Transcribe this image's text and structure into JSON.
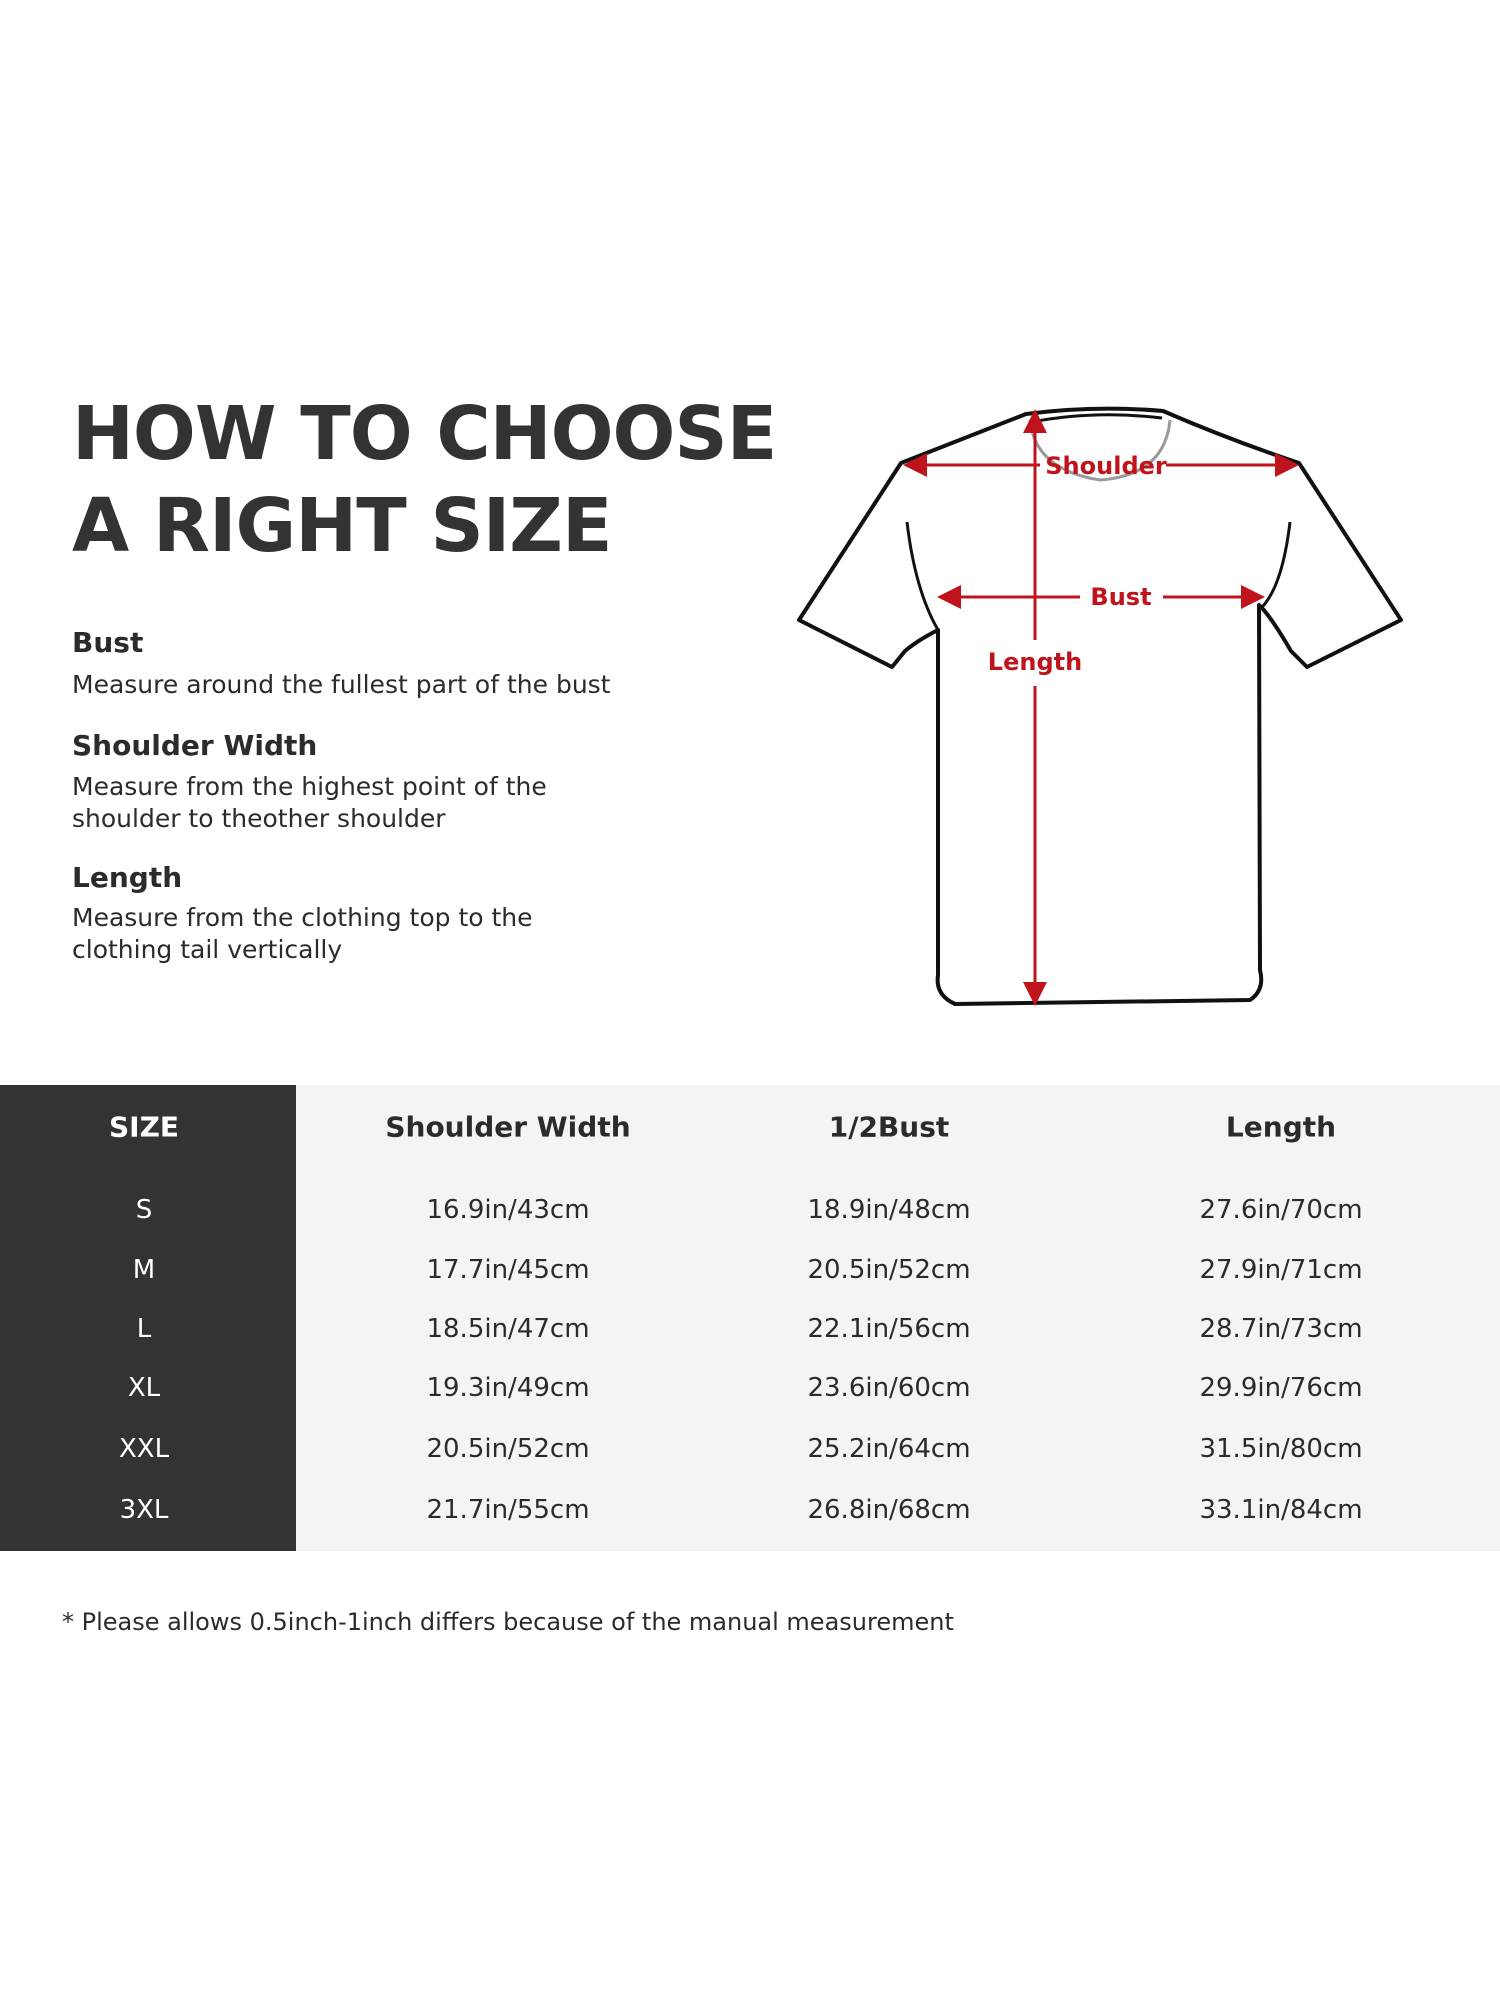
{
  "title": [
    "HOW TO CHOOSE",
    "A RIGHT SIZE"
  ],
  "guide": [
    {
      "heading": "Bust",
      "lines": [
        "Measure around the fullest part of the bust"
      ]
    },
    {
      "heading": "Shoulder Width",
      "lines": [
        "Measure from the highest point of the",
        "shoulder to theother shoulder"
      ]
    },
    {
      "heading": "Length",
      "lines": [
        "Measure from the clothing top to the",
        "clothing tail vertically"
      ]
    }
  ],
  "diagram": {
    "labels": {
      "shoulder": "Shoulder",
      "bust": "Bust",
      "length": "Length"
    },
    "accent_color": "#c0141c"
  },
  "table": {
    "headers": [
      "SIZE",
      "Shoulder Width",
      "1/2Bust",
      "Length"
    ],
    "rows": [
      [
        "S",
        "16.9in/43cm",
        "18.9in/48cm",
        "27.6in/70cm"
      ],
      [
        "M",
        "17.7in/45cm",
        "20.5in/52cm",
        "27.9in/71cm"
      ],
      [
        "L",
        "18.5in/47cm",
        "22.1in/56cm",
        "28.7in/73cm"
      ],
      [
        "XL",
        "19.3in/49cm",
        "23.6in/60cm",
        "29.9in/76cm"
      ],
      [
        "XXL",
        "20.5in/52cm",
        "25.2in/64cm",
        "31.5in/80cm"
      ],
      [
        "3XL",
        "21.7in/55cm",
        "26.8in/68cm",
        "33.1in/84cm"
      ]
    ]
  },
  "footnote": "* Please allows 0.5inch-1inch differs because of the  manual measurement"
}
